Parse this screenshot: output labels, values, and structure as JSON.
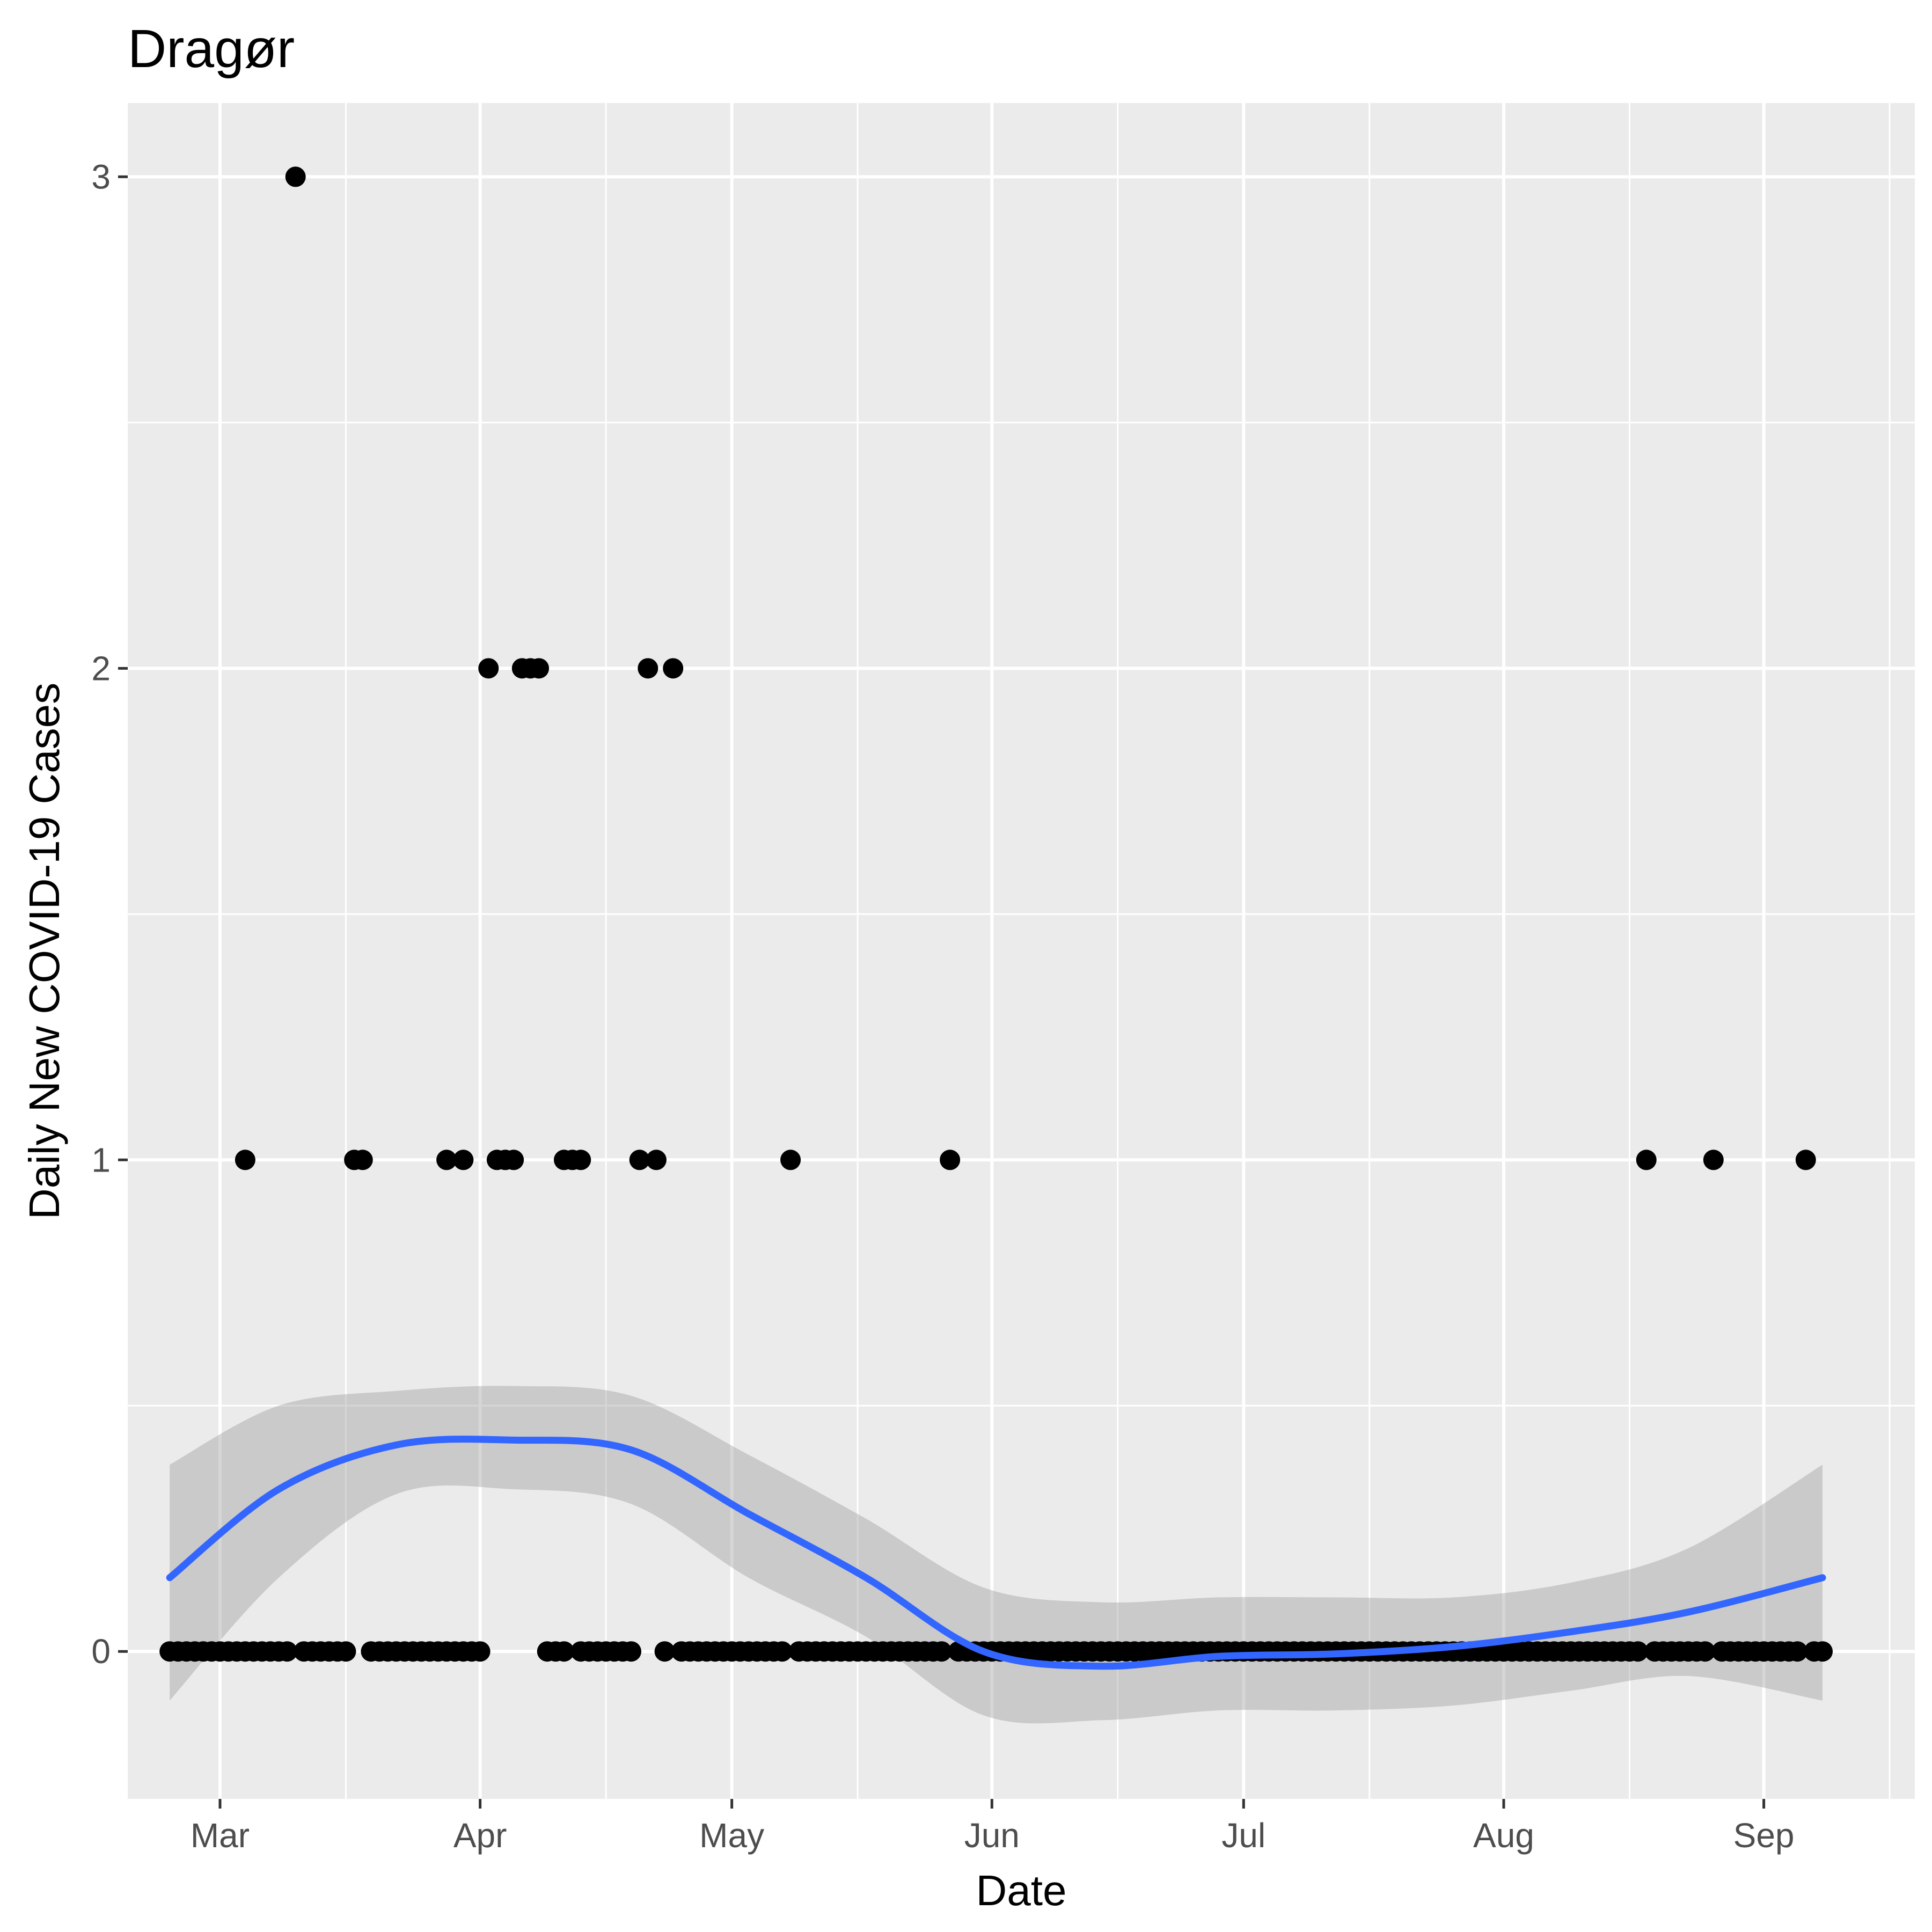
{
  "chart_data": {
    "type": "scatter",
    "title": "Dragør",
    "xlabel": "Date",
    "ylabel": "Daily New COVID-19 Cases",
    "x_range": [
      "2020-02-19",
      "2020-09-19"
    ],
    "ylim": [
      -0.3,
      3.15
    ],
    "y_ticks": [
      0,
      1,
      2,
      3
    ],
    "x_ticks": [
      {
        "date": "2020-03-01",
        "label": "Mar"
      },
      {
        "date": "2020-04-01",
        "label": "Apr"
      },
      {
        "date": "2020-05-01",
        "label": "May"
      },
      {
        "date": "2020-06-01",
        "label": "Jun"
      },
      {
        "date": "2020-07-01",
        "label": "Jul"
      },
      {
        "date": "2020-08-01",
        "label": "Aug"
      },
      {
        "date": "2020-09-01",
        "label": "Sep"
      }
    ],
    "x_minor_ticks": [
      "2020-03-16",
      "2020-04-16",
      "2020-05-16",
      "2020-06-16",
      "2020-07-16",
      "2020-08-16",
      "2020-09-16"
    ],
    "grid": true,
    "colors": {
      "panel": "#ebebeb",
      "grid": "#ffffff",
      "points": "#000000",
      "smooth_line": "#3366ff",
      "ci_band": "#999999"
    },
    "points": [
      {
        "x": "2020-03-10",
        "y": 3
      },
      {
        "x": "2020-04-02",
        "y": 2
      },
      {
        "x": "2020-04-06",
        "y": 2
      },
      {
        "x": "2020-04-07",
        "y": 2
      },
      {
        "x": "2020-04-08",
        "y": 2
      },
      {
        "x": "2020-04-21",
        "y": 2
      },
      {
        "x": "2020-04-24",
        "y": 2
      },
      {
        "x": "2020-03-04",
        "y": 1
      },
      {
        "x": "2020-03-17",
        "y": 1
      },
      {
        "x": "2020-03-18",
        "y": 1
      },
      {
        "x": "2020-03-28",
        "y": 1
      },
      {
        "x": "2020-03-30",
        "y": 1
      },
      {
        "x": "2020-04-03",
        "y": 1
      },
      {
        "x": "2020-04-04",
        "y": 1
      },
      {
        "x": "2020-04-05",
        "y": 1
      },
      {
        "x": "2020-04-11",
        "y": 1
      },
      {
        "x": "2020-04-12",
        "y": 1
      },
      {
        "x": "2020-04-13",
        "y": 1
      },
      {
        "x": "2020-04-20",
        "y": 1
      },
      {
        "x": "2020-04-22",
        "y": 1
      },
      {
        "x": "2020-05-08",
        "y": 1
      },
      {
        "x": "2020-05-27",
        "y": 1
      },
      {
        "x": "2020-08-18",
        "y": 1
      },
      {
        "x": "2020-08-26",
        "y": 1
      },
      {
        "x": "2020-09-06",
        "y": 1
      }
    ],
    "zero_points": {
      "start": "2020-02-24",
      "end": "2020-09-08",
      "y": 0,
      "note_dates_with_nonzero_excluded": true,
      "missing": [
        "2020-03-10",
        "2020-03-17",
        "2020-03-18",
        "2020-04-02",
        "2020-04-03",
        "2020-04-04",
        "2020-04-05",
        "2020-04-06",
        "2020-04-07",
        "2020-04-08",
        "2020-04-12",
        "2020-04-20",
        "2020-04-21",
        "2020-04-22",
        "2020-04-24",
        "2020-05-08",
        "2020-05-27",
        "2020-08-18",
        "2020-08-26",
        "2020-09-06"
      ]
    },
    "smooth": {
      "method": "loess",
      "x": [
        "2020-02-24",
        "2020-03-08",
        "2020-03-22",
        "2020-04-05",
        "2020-04-19",
        "2020-05-03",
        "2020-05-17",
        "2020-05-31",
        "2020-06-14",
        "2020-06-28",
        "2020-07-12",
        "2020-07-26",
        "2020-08-09",
        "2020-08-23",
        "2020-09-08"
      ],
      "y": [
        0.15,
        0.33,
        0.42,
        0.43,
        0.41,
        0.28,
        0.15,
        0.0,
        -0.03,
        -0.01,
        -0.005,
        0.01,
        0.04,
        0.08,
        0.15
      ],
      "ymin": [
        -0.1,
        0.15,
        0.32,
        0.33,
        0.3,
        0.15,
        0.03,
        -0.13,
        -0.14,
        -0.12,
        -0.12,
        -0.11,
        -0.08,
        -0.05,
        -0.1
      ],
      "ymax": [
        0.38,
        0.5,
        0.53,
        0.54,
        0.52,
        0.4,
        0.27,
        0.13,
        0.1,
        0.11,
        0.11,
        0.11,
        0.14,
        0.21,
        0.38
      ]
    }
  }
}
